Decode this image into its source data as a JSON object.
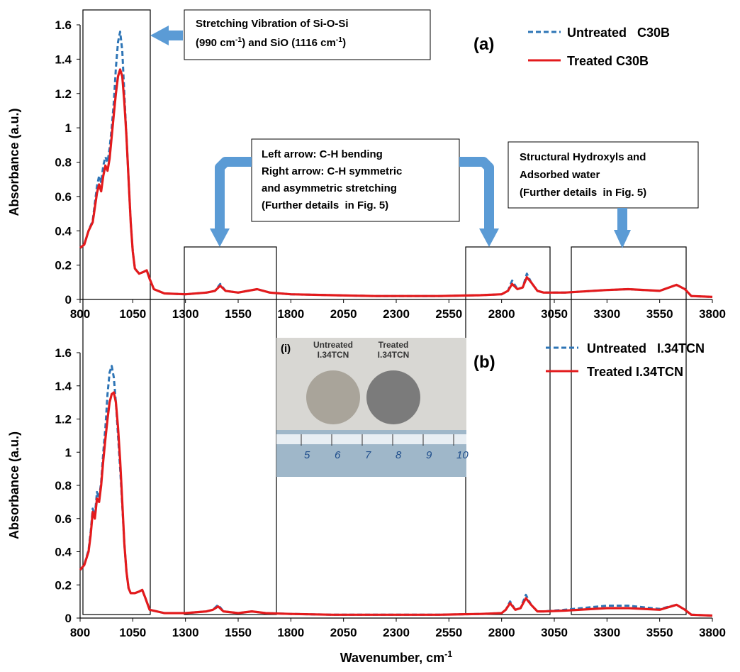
{
  "chart_data": [
    {
      "type": "line",
      "y_label": "Absorbance (a.u.)",
      "panel_label": "(a)",
      "xlim": [
        800,
        3800
      ],
      "xticks": [
        800,
        1050,
        1300,
        1550,
        1800,
        2050,
        2300,
        2550,
        2800,
        3050,
        3300,
        3550,
        3800
      ],
      "ylim": [
        0,
        1.6
      ],
      "yticks": [
        0,
        0.2,
        0.4,
        0.6,
        0.8,
        1,
        1.2,
        1.4,
        1.6
      ],
      "x": [
        800,
        820,
        840,
        860,
        880,
        890,
        900,
        910,
        920,
        930,
        940,
        950,
        960,
        970,
        980,
        990,
        1000,
        1010,
        1020,
        1030,
        1040,
        1050,
        1060,
        1080,
        1100,
        1116,
        1130,
        1150,
        1200,
        1300,
        1400,
        1440,
        1465,
        1490,
        1550,
        1640,
        1700,
        1800,
        2000,
        2200,
        2500,
        2700,
        2800,
        2830,
        2850,
        2875,
        2900,
        2920,
        2940,
        2970,
        3000,
        3100,
        3300,
        3400,
        3550,
        3630,
        3670,
        3700,
        3800
      ],
      "series": [
        {
          "name": "Untreated   C30B",
          "color": "#2e75b6",
          "line_style": "dashed",
          "values": [
            0.3,
            0.32,
            0.4,
            0.46,
            0.66,
            0.72,
            0.68,
            0.78,
            0.83,
            0.8,
            0.88,
            1.0,
            1.15,
            1.35,
            1.5,
            1.56,
            1.45,
            1.2,
            0.95,
            0.7,
            0.45,
            0.28,
            0.18,
            0.15,
            0.16,
            0.17,
            0.12,
            0.06,
            0.035,
            0.03,
            0.04,
            0.05,
            0.09,
            0.05,
            0.04,
            0.06,
            0.04,
            0.03,
            0.025,
            0.02,
            0.02,
            0.025,
            0.03,
            0.05,
            0.11,
            0.06,
            0.07,
            0.15,
            0.1,
            0.05,
            0.04,
            0.04,
            0.055,
            0.06,
            0.05,
            0.085,
            0.06,
            0.02,
            0.015
          ]
        },
        {
          "name": "Treated C30B",
          "color": "#e31a1c",
          "line_style": "solid",
          "values": [
            0.3,
            0.32,
            0.4,
            0.45,
            0.62,
            0.67,
            0.63,
            0.72,
            0.78,
            0.75,
            0.82,
            0.95,
            1.08,
            1.2,
            1.3,
            1.34,
            1.3,
            1.15,
            0.95,
            0.7,
            0.45,
            0.28,
            0.18,
            0.15,
            0.16,
            0.17,
            0.12,
            0.06,
            0.035,
            0.03,
            0.04,
            0.05,
            0.08,
            0.05,
            0.04,
            0.06,
            0.04,
            0.03,
            0.025,
            0.02,
            0.02,
            0.025,
            0.03,
            0.05,
            0.09,
            0.06,
            0.07,
            0.13,
            0.1,
            0.05,
            0.04,
            0.04,
            0.055,
            0.06,
            0.05,
            0.085,
            0.06,
            0.02,
            0.015
          ]
        }
      ],
      "annotations": [
        {
          "lines": [
            [
              "Stretching Vibration of Si-O-Si"
            ],
            [
              "(990 cm",
              "-1",
              ") and SiO (1116 cm",
              "-1",
              ")"
            ]
          ]
        },
        {
          "lines": [
            [
              "Left arrow: C-H bending"
            ],
            [
              "Right arrow: C-H symmetric"
            ],
            [
              "and asymmetric stretching"
            ],
            [
              "(Further details  in Fig. 5)"
            ]
          ]
        },
        {
          "lines": [
            [
              "Structural Hydroxyls and"
            ],
            [
              "Adsorbed water"
            ],
            [
              "(Further details  in Fig. 5)"
            ]
          ]
        }
      ]
    },
    {
      "type": "line",
      "y_label": "Absorbance (a.u.)",
      "x_label": [
        "Wavenumber, cm",
        "-1"
      ],
      "panel_label": "(b)",
      "xlim": [
        800,
        3800
      ],
      "xticks": [
        800,
        1050,
        1300,
        1550,
        1800,
        2050,
        2300,
        2550,
        2800,
        3050,
        3300,
        3550,
        3800
      ],
      "ylim": [
        0,
        1.6
      ],
      "yticks": [
        0,
        0.2,
        0.4,
        0.6,
        0.8,
        1,
        1.2,
        1.4,
        1.6
      ],
      "x": [
        800,
        820,
        840,
        850,
        860,
        870,
        880,
        890,
        900,
        910,
        920,
        930,
        940,
        950,
        960,
        970,
        980,
        990,
        1000,
        1010,
        1020,
        1030,
        1040,
        1060,
        1080,
        1095,
        1110,
        1130,
        1200,
        1300,
        1400,
        1430,
        1455,
        1480,
        1550,
        1615,
        1680,
        1800,
        2000,
        2200,
        2500,
        2700,
        2800,
        2820,
        2840,
        2865,
        2890,
        2915,
        2940,
        2970,
        3000,
        3100,
        3300,
        3400,
        3550,
        3630,
        3670,
        3700,
        3800
      ],
      "series": [
        {
          "name": "Untreated   I.34TCN",
          "color": "#2e75b6",
          "line_style": "dashed",
          "values": [
            0.29,
            0.32,
            0.41,
            0.52,
            0.66,
            0.62,
            0.76,
            0.72,
            0.82,
            1.0,
            1.15,
            1.35,
            1.48,
            1.52,
            1.45,
            1.3,
            1.1,
            0.9,
            0.68,
            0.45,
            0.28,
            0.18,
            0.15,
            0.15,
            0.16,
            0.17,
            0.12,
            0.05,
            0.03,
            0.03,
            0.04,
            0.05,
            0.08,
            0.04,
            0.03,
            0.04,
            0.03,
            0.025,
            0.02,
            0.02,
            0.02,
            0.025,
            0.03,
            0.05,
            0.1,
            0.05,
            0.06,
            0.14,
            0.08,
            0.04,
            0.04,
            0.05,
            0.075,
            0.075,
            0.055,
            0.08,
            0.05,
            0.02,
            0.015
          ]
        },
        {
          "name": "Treated I.34TCN",
          "color": "#e31a1c",
          "line_style": "solid",
          "values": [
            0.29,
            0.32,
            0.4,
            0.5,
            0.64,
            0.6,
            0.72,
            0.7,
            0.8,
            0.95,
            1.08,
            1.2,
            1.3,
            1.35,
            1.36,
            1.3,
            1.15,
            0.95,
            0.7,
            0.45,
            0.28,
            0.18,
            0.15,
            0.15,
            0.16,
            0.17,
            0.12,
            0.05,
            0.03,
            0.03,
            0.04,
            0.05,
            0.07,
            0.04,
            0.03,
            0.04,
            0.03,
            0.025,
            0.02,
            0.02,
            0.02,
            0.025,
            0.03,
            0.05,
            0.09,
            0.05,
            0.06,
            0.12,
            0.08,
            0.04,
            0.04,
            0.045,
            0.06,
            0.06,
            0.05,
            0.08,
            0.05,
            0.02,
            0.015
          ]
        }
      ],
      "inset": {
        "label": "(i)",
        "samples": [
          [
            "Untreated",
            "I.34TCN"
          ],
          [
            "Treated",
            "I.34TCN"
          ]
        ],
        "ruler": [
          "5",
          "6",
          "7",
          "8",
          "9",
          "10"
        ]
      }
    }
  ]
}
